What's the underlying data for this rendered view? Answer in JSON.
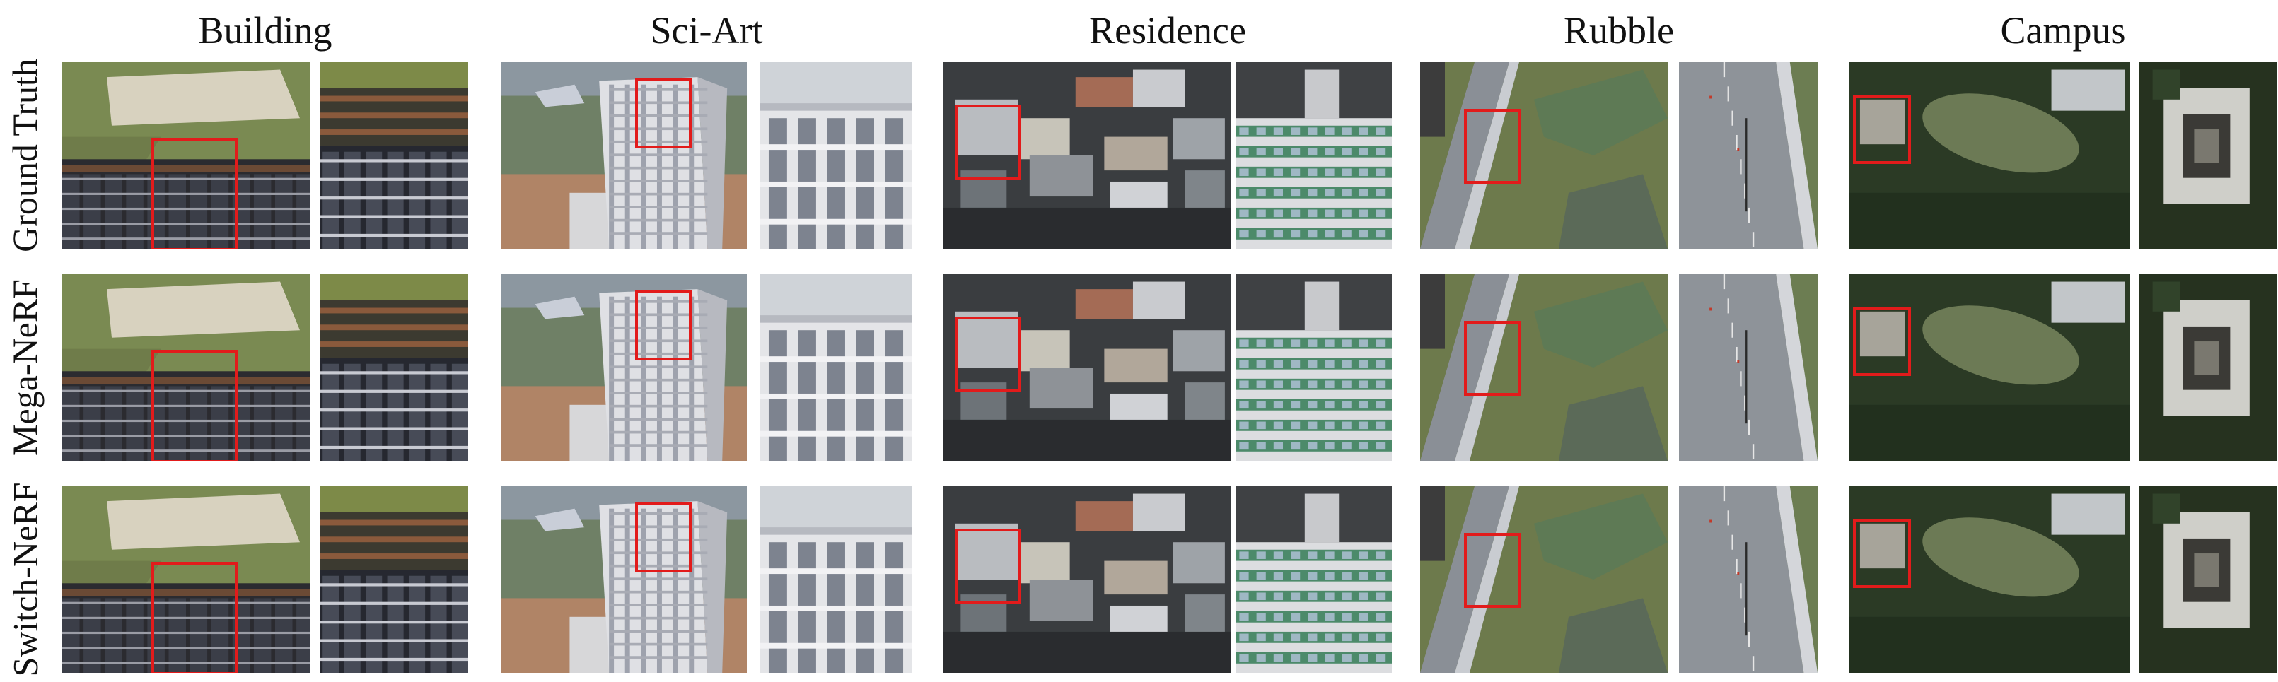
{
  "columns": [
    {
      "title": "Building",
      "key": "building"
    },
    {
      "title": "Sci-Art",
      "key": "sciart"
    },
    {
      "title": "Residence",
      "key": "residence"
    },
    {
      "title": "Rubble",
      "key": "rubble"
    },
    {
      "title": "Campus",
      "key": "campus"
    }
  ],
  "rows": [
    {
      "label": "Ground Truth"
    },
    {
      "label": "Mega-NeRF"
    },
    {
      "label": "Switch-NeRF"
    }
  ],
  "colors": {
    "crop_box": "#e21b1b"
  }
}
